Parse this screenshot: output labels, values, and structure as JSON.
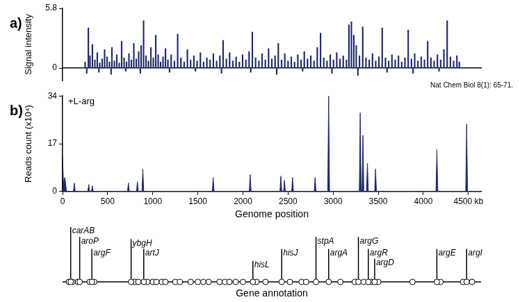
{
  "chart_data": [
    {
      "type": "bar",
      "panel": "a)",
      "y_label": "Signal intensity",
      "annotation": "Nat Chem Biol 8(1): 65-71.",
      "color": "#1f2a6b",
      "xlim": [
        0,
        4640
      ],
      "ylim": [
        -1.2,
        5.8
      ],
      "yticks": [
        0,
        5.8
      ],
      "tick_labels": "y",
      "grid": false,
      "x": [
        20,
        60,
        80,
        110,
        140,
        170,
        200,
        230,
        260,
        290,
        320,
        350,
        380,
        410,
        440,
        470,
        500,
        530,
        560,
        590,
        620,
        650,
        680,
        710,
        740,
        770,
        800,
        830,
        860,
        890,
        920,
        950,
        980,
        1010,
        1040,
        1080,
        1120,
        1160,
        1200,
        1240,
        1280,
        1320,
        1360,
        1400,
        1440,
        1480,
        1520,
        1560,
        1600,
        1640,
        1680,
        1720,
        1760,
        1800,
        1840,
        1880,
        1920,
        1960,
        2000,
        2040,
        2080,
        2120,
        2160,
        2200,
        2240,
        2280,
        2320,
        2360,
        2400,
        2440,
        2480,
        2520,
        2560,
        2600,
        2640,
        2680,
        2720,
        2760,
        2800,
        2840,
        2880,
        2920,
        2960,
        3000,
        3040,
        3080,
        3120,
        3160,
        3200,
        3240,
        3270,
        3300,
        3330,
        3360,
        3400,
        3440,
        3480,
        3520,
        3560,
        3600,
        3640,
        3680,
        3720,
        3760,
        3800,
        3840,
        3880,
        3920,
        3960,
        4000,
        4040,
        4080,
        4120,
        4160,
        4200,
        4240,
        4280,
        4320,
        4360,
        4400,
        4440,
        4480,
        4520,
        4560,
        4600,
        4630,
        40,
        190,
        340,
        520,
        700,
        1060,
        1380,
        1700,
        2060,
        2380,
        2700,
        3060,
        3380,
        3740,
        4060,
        4380
      ],
      "values": [
        0.6,
        3.9,
        1.2,
        2.3,
        0.8,
        1.5,
        0.5,
        0.9,
        1.8,
        1.1,
        0.6,
        2.0,
        0.7,
        1.3,
        0.5,
        2.6,
        1.0,
        0.6,
        1.4,
        0.8,
        2.4,
        0.9,
        1.6,
        2.2,
        4.6,
        1.2,
        0.7,
        2.0,
        1.0,
        3.2,
        1.3,
        0.6,
        1.1,
        1.9,
        0.8,
        1.3,
        0.7,
        3.3,
        1.0,
        0.6,
        1.8,
        0.8,
        1.2,
        0.7,
        1.5,
        0.6,
        1.0,
        0.8,
        1.4,
        0.7,
        1.2,
        2.7,
        0.9,
        1.5,
        0.7,
        1.1,
        0.6,
        1.3,
        0.8,
        1.6,
        3.5,
        1.0,
        0.7,
        1.4,
        0.8,
        1.9,
        0.9,
        1.2,
        2.4,
        0.8,
        1.4,
        0.7,
        1.1,
        0.6,
        1.3,
        0.8,
        1.6,
        0.9,
        1.2,
        0.7,
        2.0,
        3.4,
        1.0,
        0.7,
        1.3,
        0.8,
        1.5,
        0.9,
        1.2,
        0.8,
        4.2,
        4.5,
        3.2,
        2.2,
        1.2,
        4.0,
        1.0,
        0.8,
        1.4,
        0.7,
        1.1,
        3.9,
        1.0,
        0.7,
        1.3,
        0.8,
        1.2,
        0.6,
        1.0,
        3.7,
        0.9,
        1.4,
        0.7,
        1.1,
        0.8,
        2.6,
        1.0,
        0.7,
        1.3,
        0.8,
        1.8,
        4.6,
        1.1,
        0.7,
        1.2,
        0.6,
        -0.5,
        -0.4,
        -0.6,
        -0.3,
        -0.5,
        -0.4,
        -0.3,
        -0.5,
        -0.4,
        -0.6,
        -0.3,
        -0.5,
        -0.7,
        -0.4,
        -0.5,
        -0.3
      ]
    },
    {
      "type": "area",
      "panel": "b)",
      "annotation": "+L-arg",
      "x_label": "Genome position",
      "y_label": "Reads count (x10⁴)",
      "color": "#1f2a6b",
      "xlim": [
        0,
        4640
      ],
      "ylim": [
        0,
        34
      ],
      "xticks": [
        0,
        500,
        1000,
        1500,
        2000,
        2500,
        3000,
        3500,
        4000,
        {
          "value": 4500,
          "label": "4500 kb"
        }
      ],
      "yticks": [
        0,
        17,
        34
      ],
      "grid": false,
      "x": [
        0,
        10,
        25,
        45,
        120,
        130,
        140,
        280,
        290,
        300,
        320,
        330,
        340,
        720,
        730,
        740,
        820,
        830,
        840,
        880,
        890,
        900,
        1660,
        1670,
        1680,
        2070,
        2080,
        2090,
        2410,
        2420,
        2430,
        2450,
        2460,
        2470,
        2540,
        2550,
        2560,
        2790,
        2800,
        2810,
        2940,
        2950,
        2960,
        3290,
        3300,
        3310,
        3320,
        3330,
        3340,
        3370,
        3380,
        3390,
        3460,
        3470,
        3480,
        4140,
        4150,
        4160,
        4470,
        4480,
        4490,
        4640
      ],
      "values": [
        12.5,
        3,
        5,
        0,
        0,
        3,
        0,
        0,
        2.5,
        0,
        0,
        2,
        0,
        0,
        3,
        0,
        0,
        3.5,
        0,
        0,
        8,
        0,
        0,
        5,
        0,
        0,
        6,
        0,
        0,
        5.5,
        0,
        0,
        4,
        0,
        0,
        5,
        0,
        0,
        5,
        0,
        0,
        34,
        0,
        0,
        28,
        0,
        0,
        20,
        0,
        0,
        10,
        0,
        0,
        8,
        0,
        0,
        15,
        0,
        0,
        24,
        0,
        0
      ]
    },
    {
      "type": "scatter",
      "title": "Gene annotation",
      "xlim": [
        0,
        4640
      ],
      "tick_labels": false,
      "marker": "circle",
      "genes": [
        {
          "name": "carAB",
          "x": 90
        },
        {
          "name": "aroP",
          "x": 190
        },
        {
          "name": "argF",
          "x": 325
        },
        {
          "name": "ybgH",
          "x": 760
        },
        {
          "name": "artJ",
          "x": 900
        },
        {
          "name": "hisL",
          "x": 2110
        },
        {
          "name": "hisJ",
          "x": 2430
        },
        {
          "name": "stpA",
          "x": 2810
        },
        {
          "name": "argA",
          "x": 2950
        },
        {
          "name": "argG",
          "x": 3280
        },
        {
          "name": "argR",
          "x": 3390
        },
        {
          "name": "argD",
          "x": 3460
        },
        {
          "name": "argE",
          "x": 4150
        },
        {
          "name": "argI",
          "x": 4480
        }
      ],
      "x": [
        70,
        110,
        170,
        300,
        350,
        800,
        840,
        940,
        1000,
        1040,
        1100,
        1140,
        1250,
        1300,
        1420,
        1500,
        1560,
        1620,
        1740,
        1800,
        1850,
        1920,
        2000,
        2150,
        2250,
        2520,
        2650,
        2700,
        3080,
        3240,
        3340,
        3420,
        3500,
        3880,
        4190,
        4440,
        4540
      ]
    }
  ]
}
